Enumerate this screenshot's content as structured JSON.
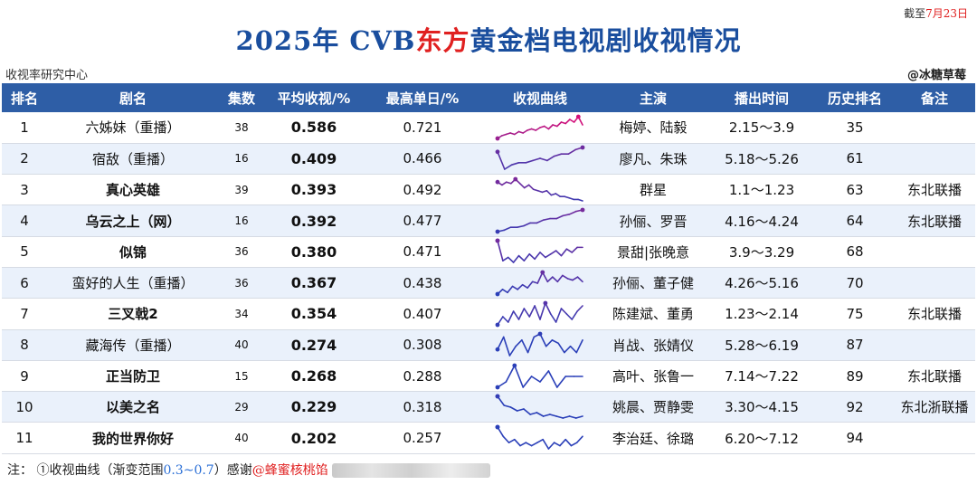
{
  "header": {
    "date_prefix": "截至",
    "date_value": "7月23日",
    "title_prefix": "2025年 CVB",
    "title_accent": "东方",
    "title_suffix": "黄金档电视剧收视情况",
    "source": "收视率研究中心",
    "watermark": "@冰糖草莓"
  },
  "colors": {
    "header_bg": "#2e5ea6",
    "title_blue": "#1a4e9e",
    "accent_red": "#e02020",
    "curve_low": "#2a3fb8",
    "curve_high": "#d4107a"
  },
  "columns": [
    "排名",
    "剧名",
    "集数",
    "平均收视/%",
    "最高单日/%",
    "收视曲线",
    "主演",
    "播出时间",
    "历史排名",
    "备注"
  ],
  "rows": [
    {
      "rank": "1",
      "name": "六姊妹（重播）",
      "bold": false,
      "eps": "38",
      "avg": "0.586",
      "max": "0.721",
      "cast": "梅婷、陆毅",
      "period": "2.15～3.9",
      "hist": "35",
      "note": "",
      "curve": [
        0.56,
        0.58,
        0.59,
        0.6,
        0.59,
        0.61,
        0.6,
        0.62,
        0.63,
        0.62,
        0.64,
        0.65,
        0.63,
        0.66,
        0.65,
        0.68,
        0.67,
        0.7,
        0.68,
        0.72,
        0.66
      ]
    },
    {
      "rank": "2",
      "name": "宿敌（重播）",
      "bold": false,
      "eps": "16",
      "avg": "0.409",
      "max": "0.466",
      "cast": "廖凡、朱珠",
      "period": "5.18～5.26",
      "hist": "61",
      "note": "",
      "curve": [
        0.44,
        0.36,
        0.38,
        0.39,
        0.39,
        0.4,
        0.41,
        0.4,
        0.42,
        0.43,
        0.43,
        0.45,
        0.46
      ]
    },
    {
      "rank": "3",
      "name": "真心英雄",
      "bold": true,
      "eps": "39",
      "avg": "0.393",
      "max": "0.492",
      "cast": "群星",
      "period": "1.1～1.23",
      "hist": "63",
      "note": "东北联播",
      "curve": [
        0.47,
        0.45,
        0.47,
        0.46,
        0.49,
        0.46,
        0.43,
        0.45,
        0.42,
        0.41,
        0.4,
        0.41,
        0.38,
        0.39,
        0.37,
        0.37,
        0.36,
        0.35,
        0.35,
        0.34
      ]
    },
    {
      "rank": "4",
      "name": "乌云之上（网）",
      "bold": true,
      "eps": "16",
      "avg": "0.392",
      "max": "0.477",
      "cast": "孙俪、罗晋",
      "period": "4.16～4.24",
      "hist": "64",
      "note": "东北联播",
      "curve": [
        0.33,
        0.34,
        0.36,
        0.36,
        0.37,
        0.39,
        0.39,
        0.41,
        0.42,
        0.42,
        0.44,
        0.45,
        0.47,
        0.48
      ]
    },
    {
      "rank": "5",
      "name": "似锦",
      "bold": true,
      "eps": "36",
      "avg": "0.380",
      "max": "0.471",
      "cast": "景甜|张晚意",
      "period": "3.9～3.29",
      "hist": "68",
      "note": "",
      "curve": [
        0.47,
        0.35,
        0.37,
        0.34,
        0.38,
        0.35,
        0.39,
        0.36,
        0.4,
        0.37,
        0.39,
        0.41,
        0.38,
        0.42,
        0.4,
        0.43,
        0.43
      ]
    },
    {
      "rank": "6",
      "name": "蛮好的人生（重播）",
      "bold": false,
      "eps": "36",
      "avg": "0.367",
      "max": "0.438",
      "cast": "孙俪、董子健",
      "period": "4.26～5.16",
      "hist": "70",
      "note": "",
      "curve": [
        0.3,
        0.33,
        0.31,
        0.35,
        0.33,
        0.36,
        0.34,
        0.38,
        0.37,
        0.44,
        0.38,
        0.41,
        0.38,
        0.42,
        0.4,
        0.39,
        0.41,
        0.38
      ]
    },
    {
      "rank": "7",
      "name": "三叉戟2",
      "bold": true,
      "eps": "34",
      "avg": "0.354",
      "max": "0.407",
      "cast": "陈建斌、董勇",
      "period": "1.23～2.14",
      "hist": "75",
      "note": "东北联播",
      "curve": [
        0.32,
        0.35,
        0.33,
        0.37,
        0.34,
        0.38,
        0.35,
        0.39,
        0.34,
        0.4,
        0.36,
        0.33,
        0.38,
        0.36,
        0.34,
        0.37,
        0.39
      ]
    },
    {
      "rank": "8",
      "name": "藏海传（重播）",
      "bold": false,
      "eps": "40",
      "avg": "0.274",
      "max": "0.308",
      "cast": "肖战、张婧仪",
      "period": "5.28～6.19",
      "hist": "87",
      "note": "",
      "curve": [
        0.26,
        0.3,
        0.24,
        0.27,
        0.29,
        0.25,
        0.3,
        0.31,
        0.27,
        0.29,
        0.28,
        0.25,
        0.27,
        0.25,
        0.29
      ]
    },
    {
      "rank": "9",
      "name": "正当防卫",
      "bold": true,
      "eps": "15",
      "avg": "0.268",
      "max": "0.288",
      "cast": "高叶、张鲁一",
      "period": "7.14～7.22",
      "hist": "89",
      "note": "东北联播",
      "curve": [
        0.25,
        0.26,
        0.29,
        0.25,
        0.27,
        0.26,
        0.28,
        0.25,
        0.27,
        0.27,
        0.27
      ]
    },
    {
      "rank": "10",
      "name": "以美之名",
      "bold": true,
      "eps": "29",
      "avg": "0.229",
      "max": "0.318",
      "cast": "姚晨、贾静雯",
      "period": "3.30～4.15",
      "hist": "92",
      "note": "东北浙联播",
      "curve": [
        0.32,
        0.27,
        0.26,
        0.24,
        0.25,
        0.22,
        0.23,
        0.21,
        0.22,
        0.21,
        0.2,
        0.21,
        0.2,
        0.21
      ]
    },
    {
      "rank": "11",
      "name": "我的世界你好",
      "bold": true,
      "eps": "40",
      "avg": "0.202",
      "max": "0.257",
      "cast": "李治廷、徐璐",
      "period": "6.20～7.12",
      "hist": "94",
      "note": "",
      "curve": [
        0.25,
        0.22,
        0.2,
        0.21,
        0.19,
        0.2,
        0.19,
        0.2,
        0.21,
        0.18,
        0.2,
        0.19,
        0.21,
        0.19,
        0.2,
        0.22
      ]
    }
  ],
  "footer": {
    "prefix": "注：",
    "item": "①收视曲线（渐变范围",
    "range": "0.3~0.7",
    "item_end": "）感谢",
    "credit": "@蜂蜜核桃馅"
  }
}
